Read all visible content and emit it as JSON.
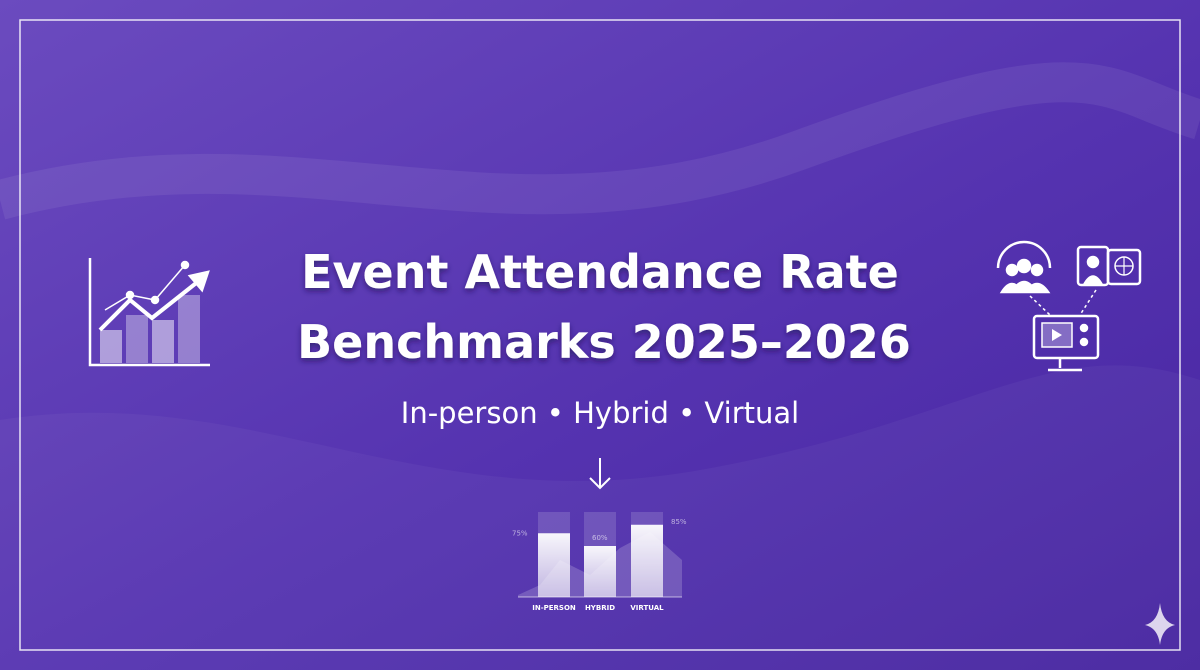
{
  "header": {
    "title_lines": [
      "Event Attendance Rate",
      "Benchmarks 2025–2026"
    ],
    "subtitle": "In-person • Hybrid • Virtual"
  },
  "chart_data": {
    "type": "bar",
    "categories": [
      "IN-PERSON",
      "HYBRID",
      "VIRTUAL"
    ],
    "values": [
      75,
      60,
      85
    ],
    "value_labels": [
      "75%",
      "60%",
      "85%"
    ],
    "color": "#ffffff"
  }
}
